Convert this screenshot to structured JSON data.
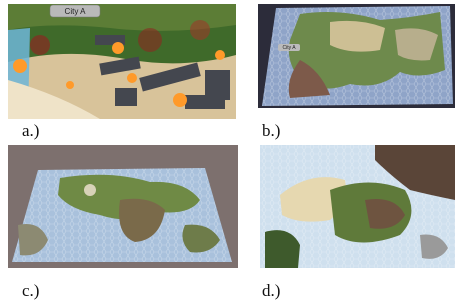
{
  "panels": [
    {
      "label": "a.)",
      "city": "City A"
    },
    {
      "label": "b.)",
      "city": "City A"
    },
    {
      "label": "c.)"
    },
    {
      "label": "d.)"
    }
  ]
}
